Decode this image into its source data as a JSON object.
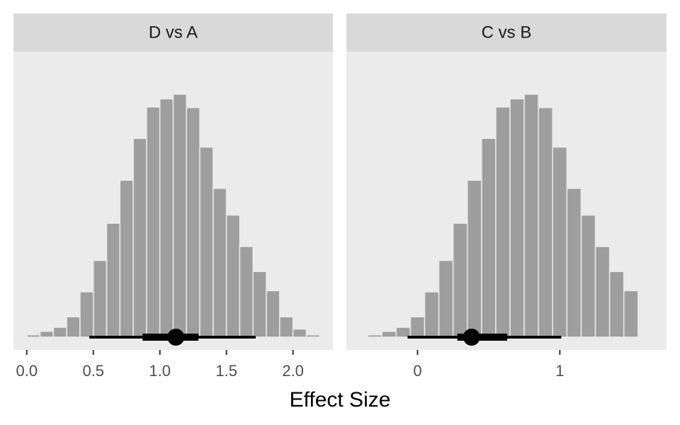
{
  "chart_data": {
    "type": "bar",
    "subtype": "faceted-histogram-with-point-interval",
    "xlabel": "Effect Size",
    "ylabel": "",
    "grid": false,
    "colors": {
      "bars": "#9e9e9e",
      "panel": "#ebebeb",
      "strip": "#d9d9d9",
      "interval": "#000000"
    },
    "facets": [
      {
        "label": "D vs A",
        "xlim": [
          -0.1,
          2.3
        ],
        "ticks": [
          0.0,
          0.5,
          1.0,
          1.5,
          2.0
        ],
        "tick_labels": [
          "0.0",
          "0.5",
          "1.0",
          "1.5",
          "2.0"
        ],
        "bin_width": 0.1,
        "bin_centers": [
          -0.05,
          0.05,
          0.15,
          0.25,
          0.35,
          0.45,
          0.55,
          0.65,
          0.75,
          0.85,
          0.95,
          1.05,
          1.15,
          1.25,
          1.35,
          1.45,
          1.55,
          1.65,
          1.75,
          1.85,
          1.95,
          2.05,
          2.15
        ],
        "counts": [
          1,
          4,
          10,
          17,
          35,
          78,
          132,
          196,
          270,
          342,
          396,
          410,
          418,
          395,
          327,
          256,
          210,
          156,
          113,
          80,
          35,
          14,
          4
        ],
        "median": 1.12,
        "interval_66": [
          0.87,
          1.29
        ],
        "interval_95": [
          0.47,
          1.72
        ]
      },
      {
        "label": "C vs B",
        "xlim": [
          -0.5,
          1.75
        ],
        "ticks": [
          0,
          1
        ],
        "tick_labels": [
          "0",
          "1"
        ],
        "bin_width": 0.1,
        "bin_centers": [
          -0.4,
          -0.3,
          -0.2,
          -0.1,
          0.0,
          0.1,
          0.2,
          0.3,
          0.4,
          0.5,
          0.6,
          0.7,
          0.8,
          0.9,
          1.0,
          1.1,
          1.2,
          1.3,
          1.4,
          1.5
        ],
        "counts": [
          1,
          4,
          10,
          17,
          35,
          78,
          132,
          196,
          270,
          342,
          396,
          410,
          418,
          395,
          327,
          256,
          210,
          156,
          113,
          80
        ],
        "median": 0.38,
        "interval_66": [
          0.28,
          0.63
        ],
        "interval_95": [
          -0.07,
          1.01
        ]
      }
    ]
  }
}
